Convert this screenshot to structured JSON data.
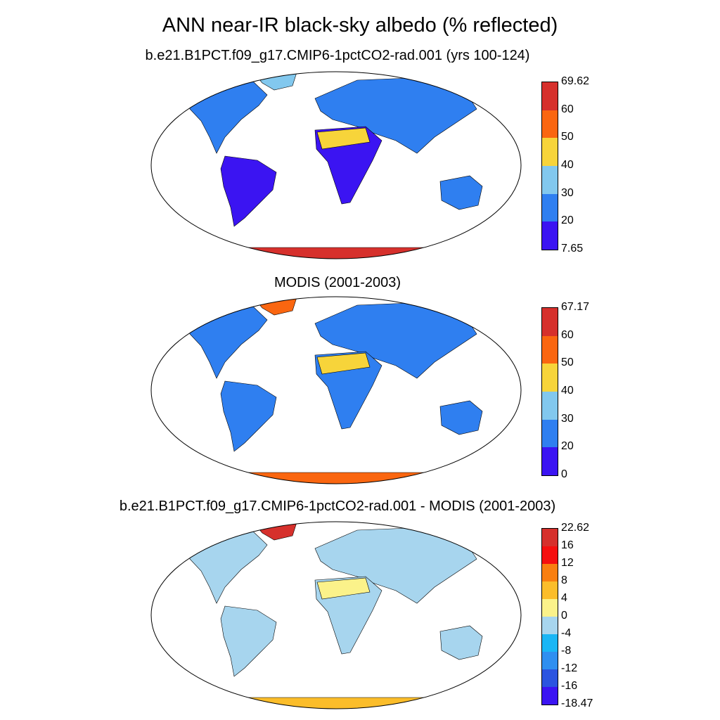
{
  "title": "ANN near-IR black-sky albedo (% reflected)",
  "panels": [
    {
      "title": "b.e21.B1PCT.f09_g17.CMIP6-1pctCO2-rad.001 (yrs 100-124)",
      "colorbar": {
        "colors": [
          "#3b14f2",
          "#2f7ff0",
          "#82c8ee",
          "#f7d43a",
          "#fa6610",
          "#d6302c"
        ],
        "labels": [
          "7.65",
          "20",
          "30",
          "40",
          "50",
          "60",
          "69.62"
        ]
      }
    },
    {
      "title": "MODIS (2001-2003)",
      "colorbar": {
        "colors": [
          "#3b14f2",
          "#2f7ff0",
          "#82c8ee",
          "#f7d43a",
          "#fa6610",
          "#d6302c"
        ],
        "labels": [
          "0",
          "20",
          "30",
          "40",
          "50",
          "60",
          "67.17"
        ]
      }
    },
    {
      "title": "b.e21.B1PCT.f09_g17.CMIP6-1pctCO2-rad.001 - MODIS (2001-2003)",
      "colorbar": {
        "colors": [
          "#3b14f2",
          "#2b54e0",
          "#2f8ff0",
          "#1ab6f5",
          "#a7d5ee",
          "#fbf28a",
          "#fbbd2a",
          "#f97f10",
          "#f50f0f",
          "#d6302c"
        ],
        "labels": [
          "-18.47",
          "-16",
          "-12",
          "-8",
          "-4",
          "0",
          "4",
          "8",
          "12",
          "16",
          "22.62"
        ]
      }
    }
  ],
  "map_regions": {
    "panel1": {
      "north_america": "#2f7ff0",
      "south_america": "#3b14f2",
      "africa": "#3b14f2",
      "sahara": "#f7d43a",
      "eurasia": "#2f7ff0",
      "australia": "#2f7ff0",
      "greenland": "#82c8ee",
      "antarctica": "#d6302c"
    },
    "panel2": {
      "north_america": "#2f7ff0",
      "south_america": "#2f7ff0",
      "africa": "#2f7ff0",
      "sahara": "#f7d43a",
      "eurasia": "#2f7ff0",
      "australia": "#2f7ff0",
      "greenland": "#fa6610",
      "antarctica": "#fa6610"
    },
    "panel3": {
      "north_america": "#a7d5ee",
      "south_america": "#a7d5ee",
      "africa": "#a7d5ee",
      "sahara": "#fbf28a",
      "eurasia": "#a7d5ee",
      "australia": "#a7d5ee",
      "greenland": "#d6302c",
      "antarctica": "#fbbd2a"
    }
  }
}
